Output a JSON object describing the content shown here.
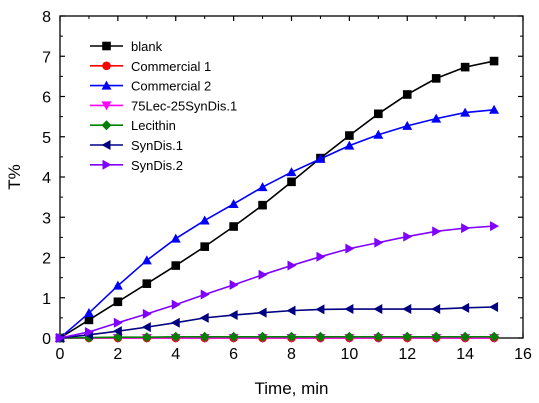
{
  "chart_data": {
    "type": "line",
    "title": "",
    "xlabel": "Time, min",
    "ylabel": "T%",
    "xlim": [
      0,
      16
    ],
    "ylim": [
      0,
      8
    ],
    "xticks": [
      0,
      2,
      4,
      6,
      8,
      10,
      12,
      14,
      16
    ],
    "yticks": [
      0,
      1,
      2,
      3,
      4,
      5,
      6,
      7,
      8
    ],
    "grid": false,
    "legend_position": "top-left",
    "x": [
      0,
      1,
      2,
      3,
      4,
      5,
      6,
      7,
      8,
      9,
      10,
      11,
      12,
      13,
      14,
      15
    ],
    "series": [
      {
        "name": "blank",
        "color": "#000000",
        "marker": "square",
        "values": [
          0,
          0.45,
          0.9,
          1.35,
          1.8,
          2.27,
          2.77,
          3.3,
          3.88,
          4.47,
          5.03,
          5.57,
          6.05,
          6.45,
          6.73,
          6.88
        ]
      },
      {
        "name": "Commercial 1",
        "color": "#ff0000",
        "marker": "circle",
        "values": [
          0,
          0,
          0,
          0,
          0,
          0,
          0,
          0,
          0,
          0,
          0,
          0,
          0,
          0,
          0,
          0
        ]
      },
      {
        "name": "Commercial 2",
        "color": "#0000ff",
        "marker": "triangle-up",
        "values": [
          0,
          0.62,
          1.3,
          1.93,
          2.47,
          2.92,
          3.33,
          3.75,
          4.12,
          4.45,
          4.78,
          5.05,
          5.27,
          5.45,
          5.6,
          5.67
        ]
      },
      {
        "name": "75Lec-25SynDis.1",
        "color": "#ff00ff",
        "marker": "triangle-down",
        "values": [
          0,
          0,
          0,
          0,
          0,
          0,
          0,
          0,
          0,
          0,
          0,
          0,
          0,
          0,
          0,
          0
        ]
      },
      {
        "name": "Lecithin",
        "color": "#008000",
        "marker": "diamond",
        "values": [
          0,
          0.01,
          0.02,
          0.02,
          0.03,
          0.03,
          0.03,
          0.03,
          0.03,
          0.03,
          0.03,
          0.03,
          0.03,
          0.03,
          0.03,
          0.03
        ]
      },
      {
        "name": "SynDis.1",
        "color": "#000080",
        "marker": "triangle-left",
        "values": [
          0,
          0.08,
          0.17,
          0.27,
          0.38,
          0.5,
          0.57,
          0.63,
          0.68,
          0.71,
          0.72,
          0.72,
          0.72,
          0.72,
          0.75,
          0.77
        ]
      },
      {
        "name": "SynDis.2",
        "color": "#8000ff",
        "marker": "triangle-right",
        "values": [
          0,
          0.15,
          0.38,
          0.6,
          0.83,
          1.08,
          1.32,
          1.57,
          1.8,
          2.02,
          2.22,
          2.37,
          2.52,
          2.65,
          2.73,
          2.78
        ]
      }
    ]
  }
}
